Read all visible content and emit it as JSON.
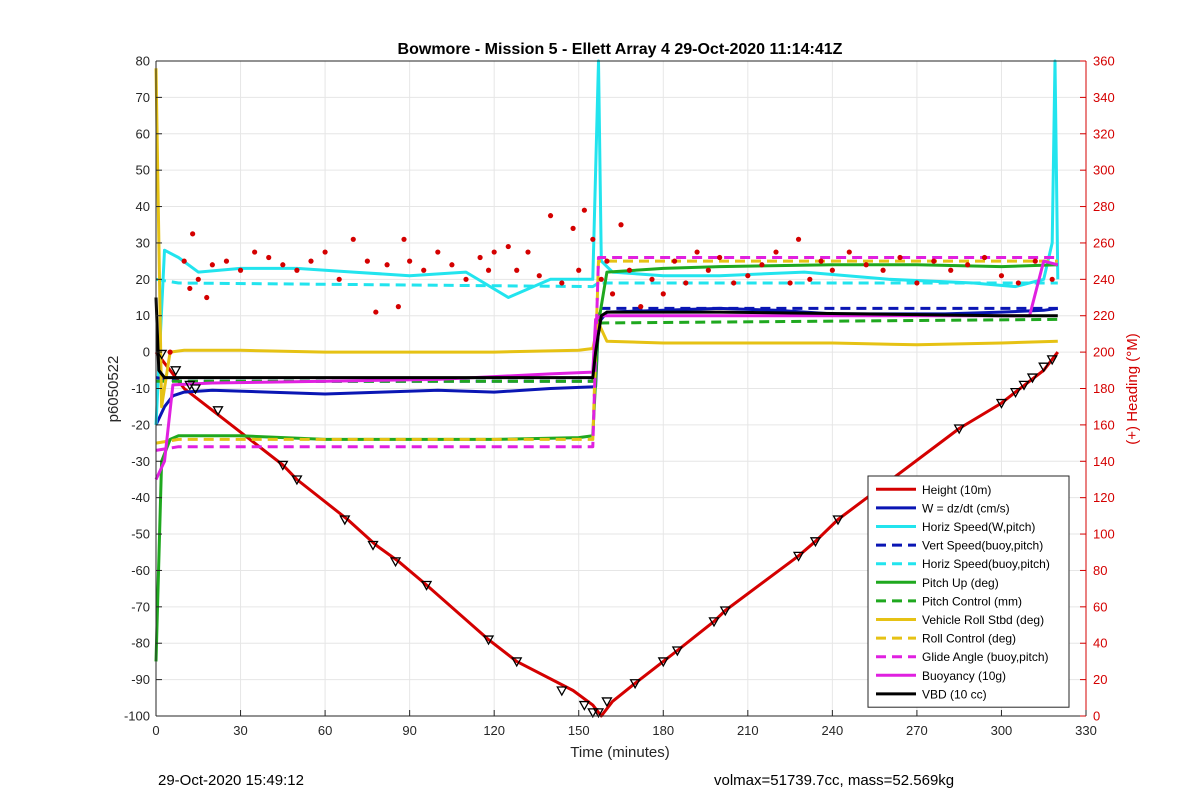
{
  "footer": {
    "timestamp": "29-Oct-2020 15:49:12",
    "volume_mass": "volmax=51739.7cc, mass=52.569kg"
  },
  "chart_data": {
    "type": "line",
    "title": "Bowmore - Mission 5 - Ellett Array 4 29-Oct-2020 11:14:41Z",
    "xlabel": "Time (minutes)",
    "ylabel": "p6050522",
    "ylabel_right": "(+) Heading (°M)",
    "xlim": [
      0,
      330
    ],
    "ylim": [
      -100,
      80
    ],
    "ylim_right": [
      0,
      360
    ],
    "xticks": [
      0,
      30,
      60,
      90,
      120,
      150,
      180,
      210,
      240,
      270,
      300,
      330
    ],
    "yticks": [
      -100,
      -90,
      -80,
      -70,
      -60,
      -50,
      -40,
      -30,
      -20,
      -10,
      0,
      10,
      20,
      30,
      40,
      50,
      60,
      70,
      80
    ],
    "yticks_right": [
      0,
      20,
      40,
      60,
      80,
      100,
      120,
      140,
      160,
      180,
      200,
      220,
      240,
      260,
      280,
      300,
      320,
      340,
      360
    ],
    "grid": true,
    "legend_position": "bottom-right",
    "colors": {
      "right_axis": "#d40000",
      "grid": "#e6e6e6"
    },
    "series": [
      {
        "name": "Height (10m)",
        "color": "#d40000",
        "style": "solid",
        "width": 3,
        "x": [
          0,
          5,
          10,
          20,
          45,
          50,
          68,
          78,
          86,
          96,
          118,
          128,
          148,
          155,
          158,
          162,
          170,
          180,
          185,
          198,
          202,
          228,
          234,
          242,
          285,
          300,
          305,
          315,
          320
        ],
        "y": [
          0,
          -5,
          -10,
          -16,
          -31,
          -35,
          -46,
          -53,
          -57.5,
          -64,
          -79,
          -85,
          -93,
          -97,
          -100,
          -96,
          -91,
          -85,
          -82,
          -74,
          -71,
          -56,
          -52,
          -46,
          -21,
          -14,
          -11,
          -5,
          0
        ]
      },
      {
        "name": "W = dz/dt (cm/s)",
        "color": "#0a16b4",
        "style": "solid",
        "width": 3,
        "x": [
          0,
          3,
          6,
          10,
          20,
          40,
          60,
          80,
          100,
          120,
          140,
          156,
          157,
          160,
          180,
          200,
          220,
          240,
          260,
          280,
          300,
          315,
          320
        ],
        "y": [
          -20,
          -15,
          -12,
          -11,
          -10.5,
          -11,
          -11.5,
          -11,
          -10.5,
          -11,
          -10,
          -9.5,
          8,
          11,
          11.5,
          12,
          11.5,
          10.5,
          10.5,
          10.5,
          11,
          11.5,
          12
        ]
      },
      {
        "name": "Horiz Speed(W,pitch)",
        "color": "#22e4ee",
        "style": "solid",
        "width": 3,
        "x": [
          0,
          3,
          8,
          15,
          30,
          50,
          70,
          90,
          110,
          125,
          140,
          155,
          157,
          158,
          162,
          180,
          200,
          230,
          260,
          290,
          305,
          315,
          318,
          319,
          320
        ],
        "y": [
          -20,
          28,
          26,
          22,
          23,
          23,
          22,
          21,
          22,
          15,
          20,
          20,
          80,
          25,
          22,
          21,
          21,
          22,
          20,
          19,
          18,
          20,
          30,
          80,
          20
        ]
      },
      {
        "name": "Vert Speed(buoy,pitch)",
        "color": "#0a16b4",
        "style": "dashed",
        "width": 3,
        "x": [
          0,
          8,
          155,
          157,
          320
        ],
        "y": [
          -7,
          -8,
          -8,
          12,
          12
        ]
      },
      {
        "name": "Horiz Speed(buoy,pitch)",
        "color": "#22e4ee",
        "style": "dashed",
        "width": 3,
        "x": [
          0,
          8,
          155,
          157,
          320
        ],
        "y": [
          20,
          19,
          18,
          19,
          19
        ]
      },
      {
        "name": "Pitch Up (deg)",
        "color": "#1fa81f",
        "style": "solid",
        "width": 3,
        "x": [
          0,
          2,
          5,
          8,
          30,
          60,
          90,
          120,
          150,
          155,
          157,
          160,
          180,
          200,
          240,
          270,
          300,
          320
        ],
        "y": [
          -85,
          -30,
          -24,
          -23,
          -23,
          -24,
          -24,
          -24,
          -23.5,
          -23,
          8,
          22,
          23,
          23.5,
          24,
          24,
          23.5,
          24
        ]
      },
      {
        "name": "Pitch Control (mm)",
        "color": "#1fa81f",
        "style": "dashed",
        "width": 3,
        "x": [
          0,
          8,
          155,
          157,
          320
        ],
        "y": [
          -8,
          -8,
          -8,
          8,
          9
        ]
      },
      {
        "name": "Vehicle Roll Stbd (deg)",
        "color": "#e6c214",
        "style": "solid",
        "width": 3,
        "x": [
          0,
          2,
          5,
          10,
          30,
          60,
          90,
          120,
          150,
          155,
          157,
          160,
          180,
          200,
          240,
          270,
          300,
          320
        ],
        "y": [
          78,
          -15,
          0,
          0.5,
          0.5,
          0,
          0,
          0,
          0.5,
          1,
          8,
          3,
          2.5,
          2.5,
          2.5,
          2,
          2.5,
          3
        ]
      },
      {
        "name": "Roll Control (deg)",
        "color": "#e6c214",
        "style": "dashed",
        "width": 3,
        "x": [
          0,
          8,
          155,
          157,
          320
        ],
        "y": [
          -25,
          -24,
          -24,
          25,
          25
        ]
      },
      {
        "name": "Glide Angle (buoy,pitch)",
        "color": "#e020e0",
        "style": "dashed",
        "width": 3,
        "x": [
          0,
          8,
          155,
          157,
          320
        ],
        "y": [
          -27,
          -26,
          -26,
          26,
          26
        ]
      },
      {
        "name": "Buoyancy (10g)",
        "color": "#e020e0",
        "style": "solid",
        "width": 3,
        "x": [
          0,
          3,
          6,
          20,
          60,
          100,
          140,
          155,
          156,
          158,
          160,
          200,
          280,
          310,
          315,
          320
        ],
        "y": [
          -35,
          -30,
          -9,
          -8.5,
          -8,
          -7.5,
          -6,
          -5.5,
          9,
          10,
          10,
          10,
          10,
          10,
          25,
          24
        ]
      },
      {
        "name": "VBD (10 cc)",
        "color": "#000000",
        "style": "solid",
        "width": 3,
        "x": [
          0,
          1,
          3,
          5,
          8,
          155,
          156,
          158,
          160,
          200,
          250,
          300,
          315,
          320
        ],
        "y": [
          15,
          -5,
          -7,
          -7,
          -7,
          -7,
          0,
          10,
          11,
          11,
          10.5,
          10,
          10,
          10
        ]
      }
    ],
    "heading_points": {
      "color": "#d40000",
      "axis": "right",
      "x": [
        5,
        10,
        12,
        13,
        15,
        18,
        20,
        25,
        30,
        35,
        40,
        45,
        50,
        55,
        60,
        65,
        70,
        75,
        78,
        82,
        86,
        88,
        90,
        95,
        100,
        105,
        110,
        115,
        118,
        120,
        125,
        128,
        132,
        136,
        140,
        144,
        148,
        150,
        152,
        155,
        158,
        160,
        162,
        165,
        168,
        172,
        176,
        180,
        184,
        188,
        192,
        196,
        200,
        205,
        210,
        215,
        220,
        225,
        228,
        232,
        236,
        240,
        246,
        252,
        258,
        264,
        270,
        276,
        282,
        288,
        294,
        300,
        306,
        312,
        318
      ],
      "y": [
        200,
        250,
        235,
        265,
        240,
        230,
        248,
        250,
        245,
        255,
        252,
        248,
        245,
        250,
        255,
        240,
        262,
        250,
        222,
        248,
        225,
        262,
        250,
        245,
        255,
        248,
        240,
        252,
        245,
        255,
        258,
        245,
        255,
        242,
        275,
        238,
        268,
        245,
        278,
        262,
        240,
        250,
        232,
        270,
        245,
        225,
        240,
        232,
        250,
        238,
        255,
        245,
        252,
        238,
        242,
        248,
        255,
        238,
        262,
        240,
        250,
        245,
        255,
        248,
        245,
        252,
        238,
        250,
        245,
        248,
        252,
        242,
        238,
        250,
        240
      ]
    },
    "markers": {
      "symbol": "triangle",
      "color": "#000000",
      "x": [
        2,
        7,
        12,
        14,
        22,
        45,
        50,
        67,
        77,
        85,
        96,
        118,
        128,
        144,
        152,
        155,
        157,
        160,
        170,
        180,
        185,
        198,
        202,
        228,
        234,
        242,
        285,
        300,
        305,
        308,
        311,
        315,
        318
      ],
      "y": [
        -0.5,
        -5,
        -9,
        -10,
        -16,
        -31,
        -35,
        -46,
        -53,
        -57.5,
        -64,
        -79,
        -85,
        -93,
        -97,
        -99,
        -99,
        -96,
        -91,
        -85,
        -82,
        -74,
        -71,
        -56,
        -52,
        -46,
        -21,
        -14,
        -11,
        -9,
        -7,
        -4,
        -2
      ]
    }
  }
}
